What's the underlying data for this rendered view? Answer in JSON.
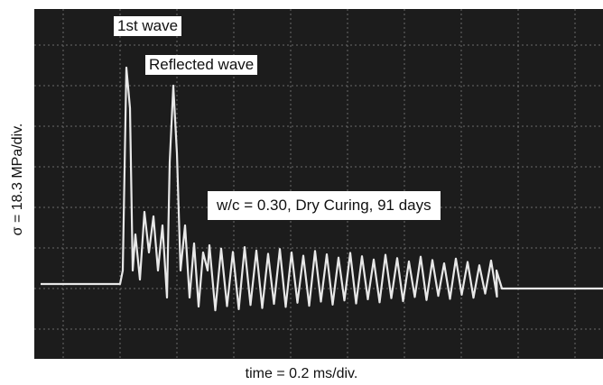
{
  "figure": {
    "annotations": {
      "first_wave": "1st wave",
      "reflected_wave": "Reflected wave",
      "condition": "w/c = 0.30, Dry Curing, 91 days"
    },
    "y_axis_label": "σ = 18.3 MPa/div.",
    "x_axis_label": "time = 0.2 ms/div."
  }
}
